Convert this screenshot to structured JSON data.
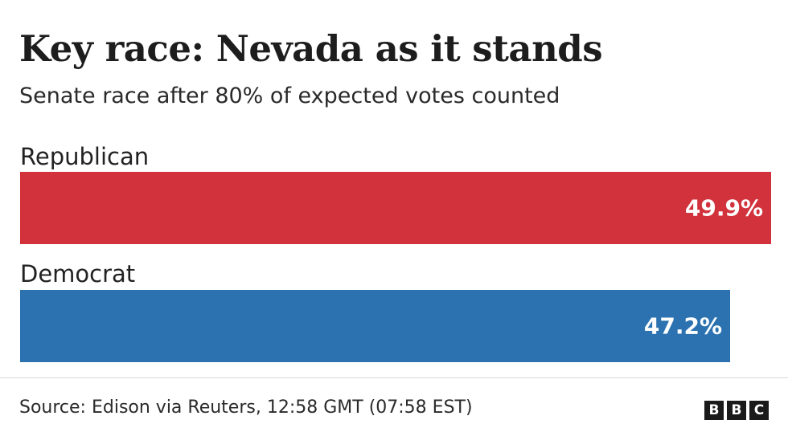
{
  "title": "Key race: Nevada as it stands",
  "subtitle": "Senate race after 80% of expected votes counted",
  "chart_data": {
    "type": "bar",
    "orientation": "horizontal",
    "categories": [
      "Republican",
      "Democrat"
    ],
    "values": [
      49.9,
      47.2
    ],
    "value_labels": [
      "49.9%",
      "47.2%"
    ],
    "colors": [
      "#d1323c",
      "#2c72b0"
    ],
    "xlim": [
      0,
      49.9
    ],
    "grid": false
  },
  "source": "Source: Edison via Reuters, 12:58 GMT (07:58 EST)",
  "logo": {
    "letters": [
      "B",
      "B",
      "C"
    ]
  }
}
